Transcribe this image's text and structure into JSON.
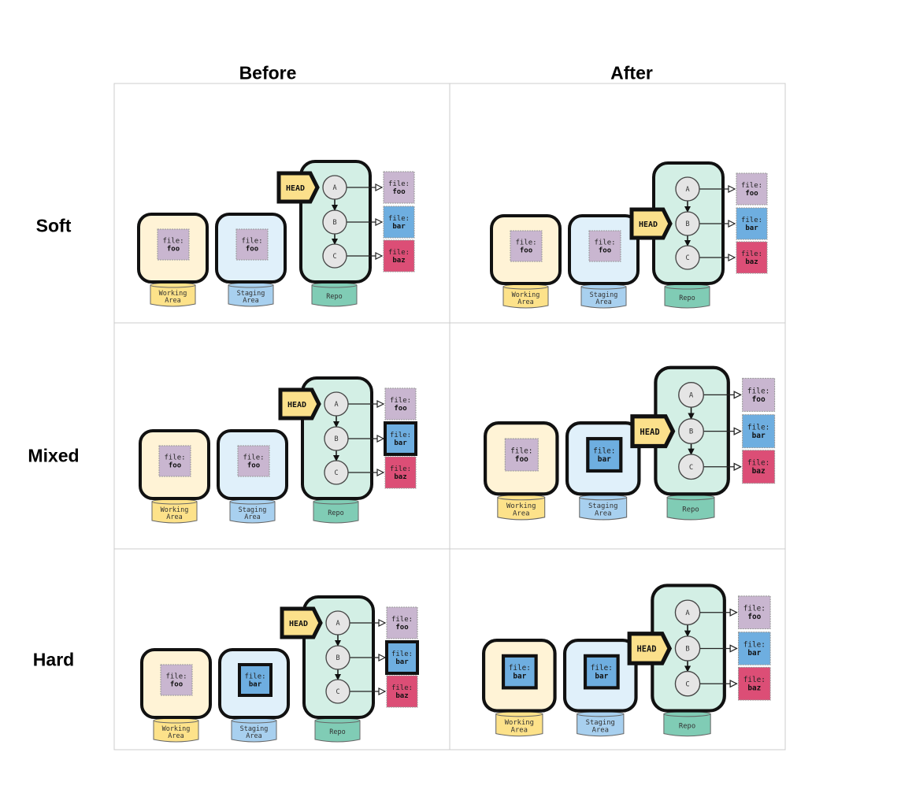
{
  "columns": [
    "Before",
    "After"
  ],
  "rows": [
    "Soft",
    "Mixed",
    "Hard"
  ],
  "labels": {
    "working": [
      "Working",
      "Area"
    ],
    "staging": [
      "Staging",
      "Area"
    ],
    "repo": "Repo",
    "head": "HEAD",
    "file_prefix": "file:",
    "commits": [
      "A",
      "B",
      "C"
    ],
    "files": [
      "foo",
      "bar",
      "baz"
    ]
  },
  "colors": {
    "working_fill": "#fff3d6",
    "working_base": "#fde28a",
    "staging_fill": "#e0f0fa",
    "staging_base": "#a8d0ef",
    "repo_fill": "#d3efe5",
    "repo_base": "#80ccb5",
    "foo": "#c9b6d0",
    "bar": "#6eaee0",
    "baz": "#dc4e76",
    "head": "#fbe08b",
    "commit": "#e5e5e5",
    "grid": "#cccccc"
  },
  "cells": [
    {
      "row": 0,
      "col": 0,
      "head": "A",
      "working": "foo",
      "staging": "foo",
      "highlight": []
    },
    {
      "row": 0,
      "col": 1,
      "head": "B",
      "working": "foo",
      "staging": "foo",
      "highlight": []
    },
    {
      "row": 1,
      "col": 0,
      "head": "A",
      "working": "foo",
      "staging": "foo",
      "highlight": [
        "repo-bar"
      ]
    },
    {
      "row": 1,
      "col": 1,
      "head": "B",
      "working": "foo",
      "staging": "bar",
      "highlight": [
        "staging"
      ]
    },
    {
      "row": 2,
      "col": 0,
      "head": "A",
      "working": "foo",
      "staging": "bar",
      "highlight": [
        "staging",
        "repo-bar"
      ]
    },
    {
      "row": 2,
      "col": 1,
      "head": "B",
      "working": "bar",
      "staging": "bar",
      "highlight": [
        "working",
        "staging"
      ]
    }
  ]
}
